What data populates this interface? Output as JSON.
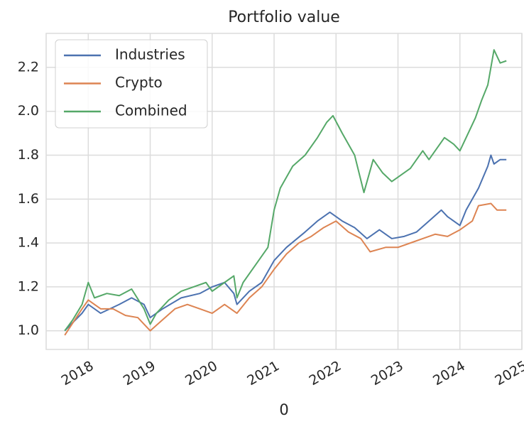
{
  "chart_data": {
    "type": "line",
    "title": "Portfolio value",
    "x_label": "0",
    "xlim": [
      2017.32,
      2025.0
    ],
    "xticks": [
      2018,
      2019,
      2020,
      2021,
      2022,
      2023,
      2024,
      2025
    ],
    "ylim": [
      0.915,
      2.355
    ],
    "yticks": [
      {
        "value": 1.0,
        "label": "1.0"
      },
      1.2,
      1.4,
      1.6,
      1.8,
      {
        "value": 2.0,
        "label": "2.0"
      },
      2.2
    ],
    "grid": true,
    "legend": "upper left",
    "series": [
      {
        "name": "Industries",
        "color": "#4c72b0",
        "x": [
          2017.62,
          2017.9,
          2018.0,
          2018.2,
          2018.5,
          2018.7,
          2018.9,
          2019.0,
          2019.2,
          2019.5,
          2019.8,
          2020.0,
          2020.2,
          2020.35,
          2020.4,
          2020.6,
          2020.8,
          2021.0,
          2021.2,
          2021.5,
          2021.7,
          2021.9,
          2022.1,
          2022.3,
          2022.5,
          2022.7,
          2022.9,
          2023.1,
          2023.3,
          2023.5,
          2023.7,
          2023.8,
          2024.0,
          2024.1,
          2024.3,
          2024.45,
          2024.5,
          2024.55,
          2024.65,
          2024.75
        ],
        "values": [
          1.0,
          1.08,
          1.12,
          1.08,
          1.12,
          1.15,
          1.12,
          1.06,
          1.1,
          1.15,
          1.17,
          1.2,
          1.22,
          1.17,
          1.12,
          1.18,
          1.22,
          1.32,
          1.38,
          1.45,
          1.5,
          1.54,
          1.5,
          1.47,
          1.42,
          1.46,
          1.42,
          1.43,
          1.45,
          1.5,
          1.55,
          1.52,
          1.48,
          1.55,
          1.65,
          1.75,
          1.8,
          1.76,
          1.78,
          1.78
        ]
      },
      {
        "name": "Crypto",
        "color": "#dd8452",
        "x": [
          2017.62,
          2017.9,
          2018.0,
          2018.2,
          2018.4,
          2018.6,
          2018.8,
          2019.0,
          2019.2,
          2019.4,
          2019.6,
          2019.8,
          2020.0,
          2020.2,
          2020.4,
          2020.6,
          2020.8,
          2021.0,
          2021.2,
          2021.4,
          2021.6,
          2021.8,
          2022.0,
          2022.2,
          2022.4,
          2022.55,
          2022.8,
          2023.0,
          2023.2,
          2023.4,
          2023.6,
          2023.8,
          2024.0,
          2024.2,
          2024.3,
          2024.5,
          2024.6,
          2024.75
        ],
        "values": [
          0.98,
          1.1,
          1.14,
          1.1,
          1.1,
          1.07,
          1.06,
          1.0,
          1.05,
          1.1,
          1.12,
          1.1,
          1.08,
          1.12,
          1.08,
          1.15,
          1.2,
          1.28,
          1.35,
          1.4,
          1.43,
          1.47,
          1.5,
          1.45,
          1.42,
          1.36,
          1.38,
          1.38,
          1.4,
          1.42,
          1.44,
          1.43,
          1.46,
          1.5,
          1.57,
          1.58,
          1.55,
          1.55
        ]
      },
      {
        "name": "Combined",
        "color": "#55a868",
        "x": [
          2017.62,
          2017.75,
          2017.9,
          2018.0,
          2018.1,
          2018.3,
          2018.5,
          2018.7,
          2018.9,
          2019.0,
          2019.1,
          2019.3,
          2019.5,
          2019.7,
          2019.9,
          2020.0,
          2020.2,
          2020.35,
          2020.4,
          2020.5,
          2020.7,
          2020.9,
          2021.0,
          2021.1,
          2021.3,
          2021.5,
          2021.7,
          2021.85,
          2021.95,
          2022.1,
          2022.3,
          2022.45,
          2022.6,
          2022.75,
          2022.9,
          2023.0,
          2023.2,
          2023.4,
          2023.5,
          2023.6,
          2023.75,
          2023.9,
          2024.0,
          2024.1,
          2024.25,
          2024.35,
          2024.45,
          2024.55,
          2024.65,
          2024.75
        ],
        "values": [
          1.0,
          1.05,
          1.12,
          1.22,
          1.15,
          1.17,
          1.16,
          1.19,
          1.1,
          1.03,
          1.08,
          1.14,
          1.18,
          1.2,
          1.22,
          1.18,
          1.22,
          1.25,
          1.15,
          1.22,
          1.3,
          1.38,
          1.55,
          1.65,
          1.75,
          1.8,
          1.88,
          1.95,
          1.98,
          1.9,
          1.8,
          1.63,
          1.78,
          1.72,
          1.68,
          1.7,
          1.74,
          1.82,
          1.78,
          1.82,
          1.88,
          1.85,
          1.82,
          1.88,
          1.97,
          2.05,
          2.12,
          2.28,
          2.22,
          2.23
        ]
      }
    ]
  }
}
